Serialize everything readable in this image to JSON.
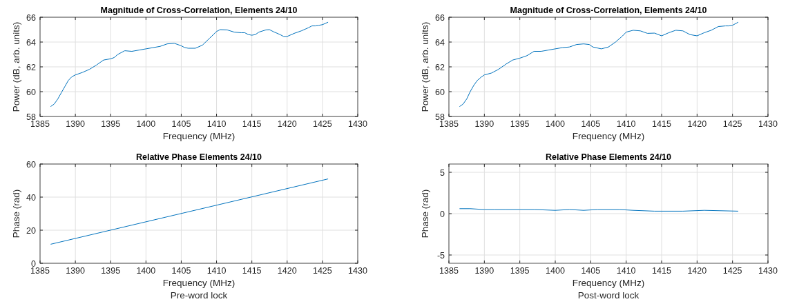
{
  "chart_data": [
    {
      "type": "line",
      "title": "Magnitude of Cross-Correlation, Elements 24/10",
      "xlabel": "Frequency (MHz)",
      "ylabel": "Power (dB, arb. units)",
      "xlim": [
        1385,
        1430
      ],
      "xticks": [
        1385,
        1390,
        1395,
        1400,
        1405,
        1410,
        1415,
        1420,
        1425,
        1430
      ],
      "ylim": [
        58,
        66
      ],
      "yticks": [
        58,
        60,
        62,
        64,
        66
      ],
      "grid": true,
      "series": [
        {
          "color": "#0072bd",
          "x": [
            1386.5,
            1387,
            1387.5,
            1388,
            1388.5,
            1389,
            1389.5,
            1390,
            1390.5,
            1391,
            1392,
            1393,
            1394,
            1395,
            1395.5,
            1396,
            1397,
            1398,
            1399,
            1400,
            1401,
            1402,
            1403,
            1404,
            1405,
            1405.5,
            1406,
            1407,
            1408,
            1409,
            1410,
            1410.5,
            1411.5,
            1412.5,
            1413.5,
            1414,
            1414.5,
            1415,
            1415.5,
            1416,
            1417,
            1417.5,
            1418,
            1419,
            1419.5,
            1420,
            1421,
            1422,
            1423,
            1423.5,
            1424,
            1424.5,
            1425,
            1425.8
          ],
          "values": [
            58.8,
            59.0,
            59.4,
            59.9,
            60.4,
            60.9,
            61.2,
            61.35,
            61.45,
            61.55,
            61.8,
            62.15,
            62.55,
            62.65,
            62.75,
            63.0,
            63.3,
            63.25,
            63.35,
            63.45,
            63.55,
            63.65,
            63.85,
            63.9,
            63.7,
            63.55,
            63.5,
            63.5,
            63.75,
            64.3,
            64.85,
            65.0,
            64.98,
            64.8,
            64.75,
            64.75,
            64.6,
            64.55,
            64.6,
            64.8,
            64.98,
            65.0,
            64.85,
            64.6,
            64.45,
            64.45,
            64.7,
            64.9,
            65.15,
            65.3,
            65.3,
            65.35,
            65.4,
            65.6
          ]
        }
      ]
    },
    {
      "type": "line",
      "title": "Magnitude of Cross-Correlation, Elements 24/10",
      "xlabel": "Frequency (MHz)",
      "ylabel": "Power (dB, arb. units)",
      "xlim": [
        1385,
        1430
      ],
      "xticks": [
        1385,
        1390,
        1395,
        1400,
        1405,
        1410,
        1415,
        1420,
        1425,
        1430
      ],
      "ylim": [
        58,
        66
      ],
      "yticks": [
        58,
        60,
        62,
        64,
        66
      ],
      "grid": true,
      "series": [
        {
          "color": "#0072bd",
          "x": [
            1386.5,
            1387,
            1387.5,
            1388,
            1388.5,
            1389,
            1389.5,
            1390,
            1391,
            1392,
            1393,
            1394,
            1395,
            1396,
            1397,
            1398,
            1399,
            1400,
            1401,
            1402,
            1403,
            1404,
            1404.8,
            1405.3,
            1406.5,
            1407.5,
            1408.5,
            1409.5,
            1410,
            1411,
            1412,
            1413,
            1414,
            1415,
            1416,
            1417,
            1418,
            1419,
            1420,
            1421,
            1422,
            1423,
            1424,
            1424.5,
            1425,
            1425.8
          ],
          "values": [
            58.8,
            59.0,
            59.4,
            60.0,
            60.5,
            60.9,
            61.15,
            61.35,
            61.5,
            61.8,
            62.2,
            62.55,
            62.7,
            62.9,
            63.25,
            63.25,
            63.35,
            63.45,
            63.55,
            63.6,
            63.8,
            63.85,
            63.8,
            63.6,
            63.45,
            63.6,
            64.0,
            64.5,
            64.8,
            64.95,
            64.9,
            64.7,
            64.72,
            64.5,
            64.75,
            64.95,
            64.9,
            64.6,
            64.5,
            64.75,
            64.95,
            65.25,
            65.3,
            65.3,
            65.35,
            65.6
          ]
        }
      ]
    },
    {
      "type": "line",
      "title": "Relative Phase Elements 24/10",
      "xlabel": "Frequency (MHz)",
      "ylabel": "Phase (rad)",
      "annotations": [
        "Pre-word lock"
      ],
      "xlim": [
        1385,
        1430
      ],
      "xticks": [
        1385,
        1390,
        1395,
        1400,
        1405,
        1410,
        1415,
        1420,
        1425,
        1430
      ],
      "ylim": [
        0,
        60
      ],
      "yticks": [
        0,
        20,
        40,
        60
      ],
      "grid": true,
      "series": [
        {
          "color": "#0072bd",
          "x": [
            1386.5,
            1425.8
          ],
          "values": [
            11.5,
            51
          ]
        }
      ]
    },
    {
      "type": "line",
      "title": "Relative Phase Elements 24/10",
      "xlabel": "Frequency (MHz)",
      "ylabel": "Phase (rad)",
      "annotations": [
        "Post-word lock"
      ],
      "xlim": [
        1385,
        1430
      ],
      "xticks": [
        1385,
        1390,
        1395,
        1400,
        1405,
        1410,
        1415,
        1420,
        1425,
        1430
      ],
      "ylim": [
        -6,
        6
      ],
      "yticks": [
        -5,
        0,
        5
      ],
      "grid": true,
      "series": [
        {
          "color": "#0072bd",
          "x": [
            1386.5,
            1388,
            1390,
            1391.5,
            1393,
            1395,
            1397,
            1400,
            1402,
            1404,
            1406,
            1409,
            1411,
            1414,
            1418,
            1421,
            1425.8
          ],
          "values": [
            0.6,
            0.6,
            0.5,
            0.5,
            0.5,
            0.5,
            0.5,
            0.4,
            0.5,
            0.4,
            0.5,
            0.5,
            0.4,
            0.3,
            0.3,
            0.4,
            0.3
          ]
        }
      ]
    }
  ]
}
